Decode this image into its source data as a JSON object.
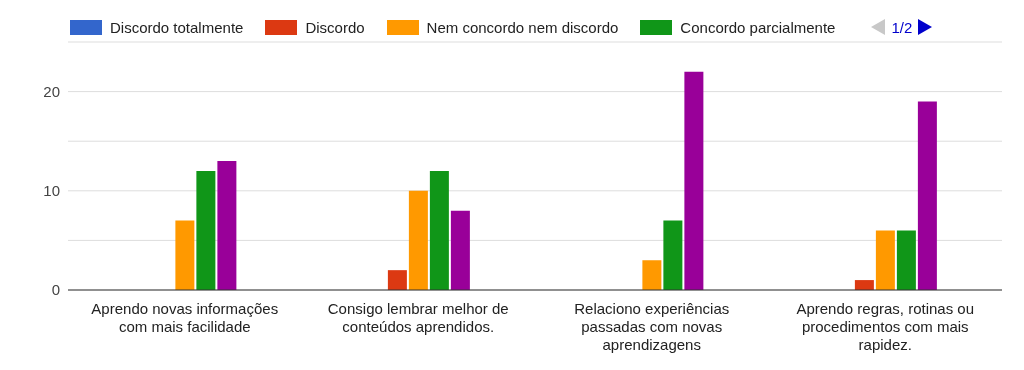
{
  "chart_data": {
    "type": "bar",
    "categories": [
      "Aprendo novas informações com mais facilidade",
      "Consigo lembrar melhor de conteúdos aprendidos.",
      "Relaciono experiências passadas com novas aprendizagens",
      "Aprendo regras, rotinas ou procedimentos com mais rapidez."
    ],
    "series": [
      {
        "name": "Discordo totalmente",
        "color": "#3366cc",
        "values": [
          0,
          0,
          0,
          0
        ]
      },
      {
        "name": "Discordo",
        "color": "#dc3912",
        "values": [
          0,
          2,
          0,
          1
        ]
      },
      {
        "name": "Nem concordo nem discordo",
        "color": "#ff9900",
        "values": [
          7,
          10,
          3,
          6
        ]
      },
      {
        "name": "Concordo parcialmente",
        "color": "#109618",
        "values": [
          12,
          12,
          7,
          6
        ]
      },
      {
        "color": "#990099",
        "values": [
          13,
          8,
          22,
          19
        ]
      }
    ],
    "ylim": [
      0,
      25
    ],
    "yticks": [
      0,
      {
        "value": 5,
        "label": null
      },
      10,
      {
        "value": 15,
        "label": null
      },
      20,
      {
        "value": 25,
        "label": null
      }
    ],
    "grid": "y",
    "legend": "top",
    "annotations": [
      "1/2"
    ]
  }
}
